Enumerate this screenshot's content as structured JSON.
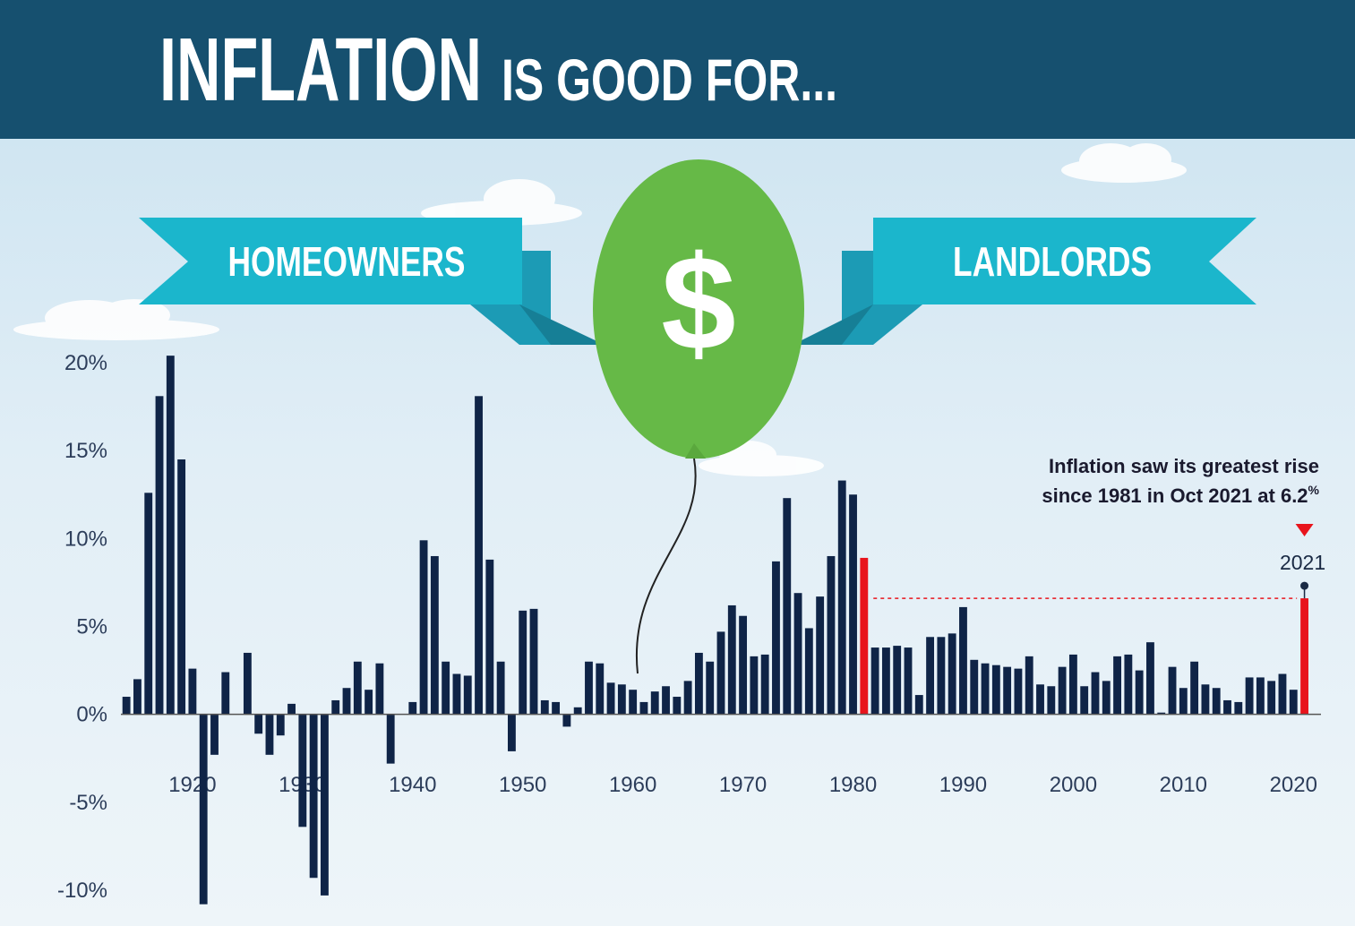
{
  "title": "INFLATION",
  "title_rest": "IS GOOD FOR...",
  "ribbons": [
    "HOMEOWNERS",
    "LANDLORDS"
  ],
  "balloon": "$",
  "chart_data": {
    "type": "bar",
    "annotation": [
      "Inflation saw its greatest rise",
      "since 1981 in Oct 2021 at 6.2"
    ],
    "annotation_sup": "%",
    "marker_label": "2021",
    "x": [
      1914,
      1915,
      1916,
      1917,
      1918,
      1919,
      1920,
      1921,
      1922,
      1923,
      1924,
      1925,
      1926,
      1927,
      1928,
      1929,
      1930,
      1931,
      1932,
      1933,
      1934,
      1935,
      1936,
      1937,
      1938,
      1939,
      1940,
      1941,
      1942,
      1943,
      1944,
      1945,
      1946,
      1947,
      1948,
      1949,
      1950,
      1951,
      1952,
      1953,
      1954,
      1955,
      1956,
      1957,
      1958,
      1959,
      1960,
      1961,
      1962,
      1963,
      1964,
      1965,
      1966,
      1967,
      1968,
      1969,
      1970,
      1971,
      1972,
      1973,
      1974,
      1975,
      1976,
      1977,
      1978,
      1979,
      1980,
      1981,
      1982,
      1983,
      1984,
      1985,
      1986,
      1987,
      1988,
      1989,
      1990,
      1991,
      1992,
      1993,
      1994,
      1995,
      1996,
      1997,
      1998,
      1999,
      2000,
      2001,
      2002,
      2003,
      2004,
      2005,
      2006,
      2007,
      2008,
      2009,
      2010,
      2011,
      2012,
      2013,
      2014,
      2015,
      2016,
      2017,
      2018,
      2019,
      2020,
      2021
    ],
    "values": [
      1.0,
      2.0,
      12.6,
      18.1,
      20.4,
      14.5,
      2.6,
      -10.8,
      -2.3,
      2.4,
      0,
      3.5,
      -1.1,
      -2.3,
      -1.2,
      0.6,
      -6.4,
      -9.3,
      -10.3,
      0.8,
      1.5,
      3.0,
      1.4,
      2.9,
      -2.8,
      0,
      0.7,
      9.9,
      9.0,
      3.0,
      2.3,
      2.2,
      18.1,
      8.8,
      3.0,
      -2.1,
      5.9,
      6.0,
      0.8,
      0.7,
      -0.7,
      0.4,
      3.0,
      2.9,
      1.8,
      1.7,
      1.4,
      0.7,
      1.3,
      1.6,
      1.0,
      1.9,
      3.5,
      3.0,
      4.7,
      6.2,
      5.6,
      3.3,
      3.4,
      8.7,
      12.3,
      6.9,
      4.9,
      6.7,
      9.0,
      13.3,
      12.5,
      8.9,
      3.8,
      3.8,
      3.9,
      3.8,
      1.1,
      4.4,
      4.4,
      4.6,
      6.1,
      3.1,
      2.9,
      2.8,
      2.7,
      2.6,
      3.3,
      1.7,
      1.6,
      2.7,
      3.4,
      1.6,
      2.4,
      1.9,
      3.3,
      3.4,
      2.5,
      4.1,
      0.1,
      2.7,
      1.5,
      3.0,
      1.7,
      1.5,
      0.8,
      0.7,
      2.1,
      2.1,
      1.9,
      2.3,
      1.4,
      6.6
    ],
    "color": "#0f2447",
    "highlight_color": "#e8141c",
    "highlight_x": [
      1981,
      2021
    ],
    "xlim": [
      1913.5,
      2022.5
    ],
    "xticks": [
      1920,
      1930,
      1940,
      1950,
      1960,
      1970,
      1980,
      1990,
      2000,
      2010,
      2020
    ],
    "ylim": [
      -10,
      20
    ],
    "yticks": [
      {
        "value": 20,
        "label": "20%"
      },
      {
        "value": 15,
        "label": "15%"
      },
      {
        "value": 10,
        "label": "10%"
      },
      {
        "value": 5,
        "label": "5%"
      },
      {
        "value": 0,
        "label": "0%"
      },
      {
        "value": -5,
        "label": "-5%"
      },
      {
        "value": -10,
        "label": "-10%"
      }
    ]
  }
}
